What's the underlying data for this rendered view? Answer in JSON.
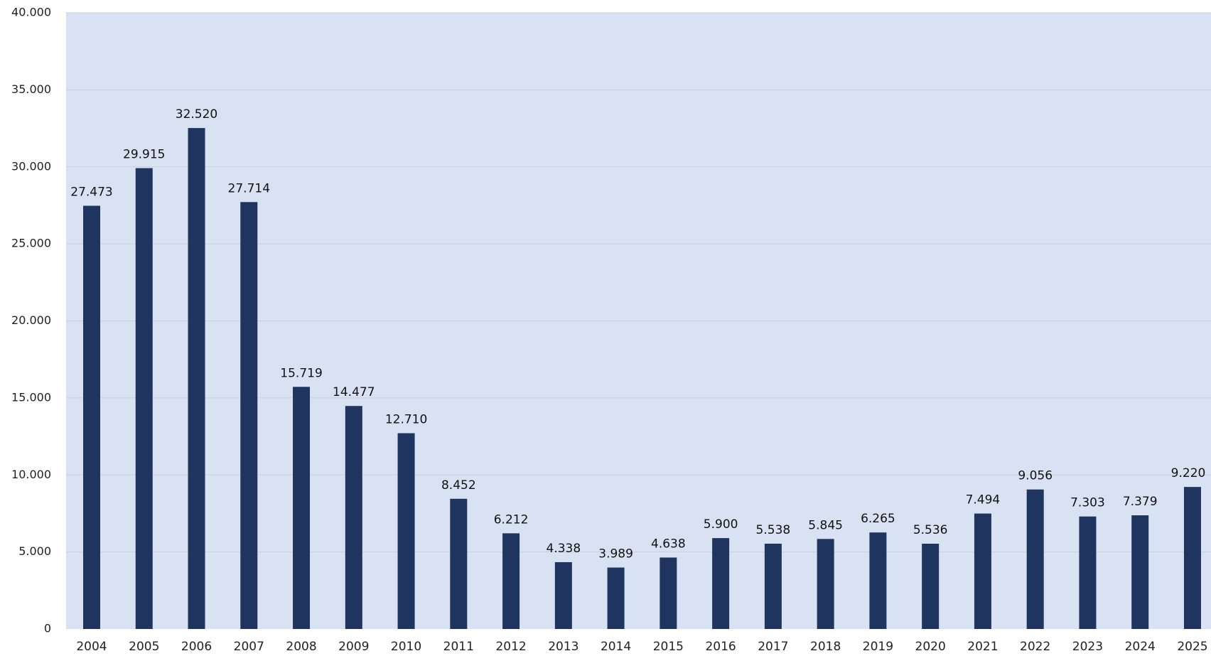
{
  "chart_data": {
    "type": "bar",
    "categories": [
      "2004",
      "2005",
      "2006",
      "2007",
      "2008",
      "2009",
      "2010",
      "2011",
      "2012",
      "2013",
      "2014",
      "2015",
      "2016",
      "2017",
      "2018",
      "2019",
      "2020",
      "2021",
      "2022",
      "2023",
      "2024",
      "2025"
    ],
    "values": [
      27473,
      29915,
      32520,
      27714,
      15719,
      14477,
      12710,
      8452,
      6212,
      4338,
      3989,
      4638,
      5900,
      5538,
      5845,
      6265,
      5536,
      7494,
      9056,
      7303,
      7379,
      9220
    ],
    "value_labels": [
      "27.473",
      "29.915",
      "32.520",
      "27.714",
      "15.719",
      "14.477",
      "12.710",
      "8.452",
      "6.212",
      "4.338",
      "3.989",
      "4.638",
      "5.900",
      "5.538",
      "5.845",
      "6.265",
      "5.536",
      "7.494",
      "9.056",
      "7.303",
      "7.379",
      "9.220"
    ],
    "y_ticks": [
      0,
      5000,
      10000,
      15000,
      20000,
      25000,
      30000,
      35000,
      40000
    ],
    "y_tick_labels": [
      "0",
      "5.000",
      "10.000",
      "15.000",
      "20.000",
      "25.000",
      "30.000",
      "35.000",
      "40.000"
    ],
    "ylim": [
      0,
      40000
    ],
    "grid": true,
    "legend": "none",
    "colors": {
      "bar": "#1f3560",
      "plot_background": "#d9e2f3",
      "gridline": "#c9cfd8"
    }
  }
}
